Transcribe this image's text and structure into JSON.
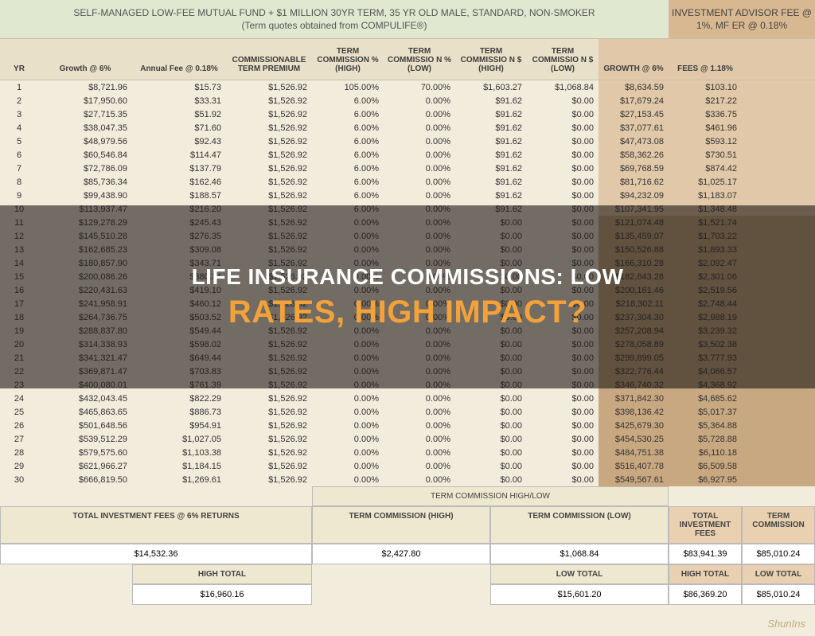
{
  "header": {
    "left_title_l1": "SELF-MANAGED LOW-FEE MUTUAL FUND + $1 MILLION 30YR TERM, 35 YR OLD MALE, STANDARD, NON-SMOKER",
    "left_title_l2": "(Term quotes obtained from COMPULIFE®)",
    "right_title_l1": "INVESTMENT ADVISOR FEE @",
    "right_title_l2": "1%, MF ER @ 0.18%"
  },
  "columns": [
    "YR",
    "Growth @ 6%",
    "Annual Fee @ 0.18%",
    "COMMISSIONABLE TERM PREMIUM",
    "TERM COMMISSION % (HIGH)",
    "TERM COMMISSIO N % (LOW)",
    "TERM COMMISSIO N $ (HIGH)",
    "TERM COMMISSIO N $ (LOW)",
    "GROWTH @ 6%",
    "FEES @ 1.18%"
  ],
  "rows": [
    [
      "1",
      "$8,721.96",
      "$15.73",
      "$1,526.92",
      "105.00%",
      "70.00%",
      "$1,603.27",
      "$1,068.84",
      "$8,634.59",
      "$103.10"
    ],
    [
      "2",
      "$17,950.60",
      "$33.31",
      "$1,526.92",
      "6.00%",
      "0.00%",
      "$91.62",
      "$0.00",
      "$17,679.24",
      "$217.22"
    ],
    [
      "3",
      "$27,715.35",
      "$51.92",
      "$1,526.92",
      "6.00%",
      "0.00%",
      "$91.62",
      "$0.00",
      "$27,153.45",
      "$336.75"
    ],
    [
      "4",
      "$38,047.35",
      "$71.60",
      "$1,526.92",
      "6.00%",
      "0.00%",
      "$91.62",
      "$0.00",
      "$37,077.61",
      "$461.96"
    ],
    [
      "5",
      "$48,979.56",
      "$92.43",
      "$1,526.92",
      "6.00%",
      "0.00%",
      "$91.62",
      "$0.00",
      "$47,473.08",
      "$593.12"
    ],
    [
      "6",
      "$60,546.84",
      "$114.47",
      "$1,526.92",
      "6.00%",
      "0.00%",
      "$91.62",
      "$0.00",
      "$58,362.26",
      "$730.51"
    ],
    [
      "7",
      "$72,786.09",
      "$137.79",
      "$1,526.92",
      "6.00%",
      "0.00%",
      "$91.62",
      "$0.00",
      "$69,768.59",
      "$874.42"
    ],
    [
      "8",
      "$85,736.34",
      "$162.46",
      "$1,526.92",
      "6.00%",
      "0.00%",
      "$91.62",
      "$0.00",
      "$81,716.62",
      "$1,025.17"
    ],
    [
      "9",
      "$99,438.90",
      "$188.57",
      "$1,526.92",
      "6.00%",
      "0.00%",
      "$91.62",
      "$0.00",
      "$94,232.09",
      "$1,183.07"
    ],
    [
      "10",
      "$113,937.47",
      "$216.20",
      "$1,526.92",
      "6.00%",
      "0.00%",
      "$91.62",
      "$0.00",
      "$107,341.95",
      "$1,348.48"
    ],
    [
      "11",
      "$129,278.29",
      "$245.43",
      "$1,526.92",
      "0.00%",
      "0.00%",
      "$0.00",
      "$0.00",
      "$121,074.48",
      "$1,521.74"
    ],
    [
      "12",
      "$145,510.28",
      "$276.35",
      "$1,526.92",
      "0.00%",
      "0.00%",
      "$0.00",
      "$0.00",
      "$135,459.07",
      "$1,703.22"
    ],
    [
      "13",
      "$162,685.23",
      "$309.08",
      "$1,526.92",
      "0.00%",
      "0.00%",
      "$0.00",
      "$0.00",
      "$150,526.88",
      "$1,893.33"
    ],
    [
      "14",
      "$180,857.90",
      "$343.71",
      "$1,526.92",
      "0.00%",
      "0.00%",
      "$0.00",
      "$0.00",
      "$166,310.28",
      "$2,092.47"
    ],
    [
      "15",
      "$200,086.26",
      "$380.34",
      "$1,526.92",
      "0.00%",
      "0.00%",
      "$0.00",
      "$0.00",
      "$182,843.28",
      "$2,301.06"
    ],
    [
      "16",
      "$220,431.63",
      "$419.10",
      "$1,526.92",
      "0.00%",
      "0.00%",
      "$0.00",
      "$0.00",
      "$200,161.46",
      "$2,519.56"
    ],
    [
      "17",
      "$241,958.91",
      "$460.12",
      "$1,526.92",
      "0.00%",
      "0.00%",
      "$0.00",
      "$0.00",
      "$218,302.11",
      "$2,748.44"
    ],
    [
      "18",
      "$264,736.75",
      "$503.52",
      "$1,526.92",
      "0.00%",
      "0.00%",
      "$0.00",
      "$0.00",
      "$237,304.30",
      "$2,988.19"
    ],
    [
      "19",
      "$288,837.80",
      "$549.44",
      "$1,526.92",
      "0.00%",
      "0.00%",
      "$0.00",
      "$0.00",
      "$257,208.94",
      "$3,239.32"
    ],
    [
      "20",
      "$314,338.93",
      "$598.02",
      "$1,526.92",
      "0.00%",
      "0.00%",
      "$0.00",
      "$0.00",
      "$278,058.89",
      "$3,502.38"
    ],
    [
      "21",
      "$341,321.47",
      "$649.44",
      "$1,526.92",
      "0.00%",
      "0.00%",
      "$0.00",
      "$0.00",
      "$299,899.05",
      "$3,777.93"
    ],
    [
      "22",
      "$369,871.47",
      "$703.83",
      "$1,526.92",
      "0.00%",
      "0.00%",
      "$0.00",
      "$0.00",
      "$322,776.44",
      "$4,066.57"
    ],
    [
      "23",
      "$400,080.01",
      "$761.39",
      "$1,526.92",
      "0.00%",
      "0.00%",
      "$0.00",
      "$0.00",
      "$346,740.32",
      "$4,368.92"
    ],
    [
      "24",
      "$432,043.45",
      "$822.29",
      "$1,526.92",
      "0.00%",
      "0.00%",
      "$0.00",
      "$0.00",
      "$371,842.30",
      "$4,685.62"
    ],
    [
      "25",
      "$465,863.65",
      "$886.73",
      "$1,526.92",
      "0.00%",
      "0.00%",
      "$0.00",
      "$0.00",
      "$398,136.42",
      "$5,017.37"
    ],
    [
      "26",
      "$501,648.56",
      "$954.91",
      "$1,526.92",
      "0.00%",
      "0.00%",
      "$0.00",
      "$0.00",
      "$425,679.30",
      "$5,364.88"
    ],
    [
      "27",
      "$539,512.29",
      "$1,027.05",
      "$1,526.92",
      "0.00%",
      "0.00%",
      "$0.00",
      "$0.00",
      "$454,530.25",
      "$5,728.88"
    ],
    [
      "28",
      "$579,575.60",
      "$1,103.38",
      "$1,526.92",
      "0.00%",
      "0.00%",
      "$0.00",
      "$0.00",
      "$484,751.38",
      "$6,110.18"
    ],
    [
      "29",
      "$621,966.27",
      "$1,184.15",
      "$1,526.92",
      "0.00%",
      "0.00%",
      "$0.00",
      "$0.00",
      "$516,407.78",
      "$6,509.58"
    ],
    [
      "30",
      "$666,819.50",
      "$1,269.61",
      "$1,526.92",
      "0.00%",
      "0.00%",
      "$0.00",
      "$0.00",
      "$549,567.61",
      "$6,927.95"
    ]
  ],
  "shade_from_row_index": 10,
  "summary": {
    "row1": {
      "term_hl_label": "TERM COMMISSION HIGH/LOW",
      "left_label": "TOTAL INVESTMENT FEES @ 6% RETURNS",
      "left_value": "$14,532.36",
      "mid_high_label": "TERM COMMISSION (HIGH)",
      "mid_high_value": "$2,427.80",
      "mid_low_label": "TERM COMMISSION (LOW)",
      "mid_low_value": "$1,068.84",
      "right_inv_label": "TOTAL INVESTMENT FEES",
      "right_inv_value": "$83,941.39",
      "right_term_label": "TERM COMMISSION",
      "right_term_value": "$85,010.24"
    },
    "row2": {
      "high_total_label": "HIGH TOTAL",
      "high_total_value": "$16,960.16",
      "low_total_label": "LOW TOTAL",
      "low_total_value": "$15,601.20",
      "r_high_label": "HIGH TOTAL",
      "r_high_value": "$86,369.20",
      "r_low_label": "LOW TOTAL",
      "r_low_value": "$85,010.24"
    }
  },
  "overlay": {
    "line1": "LIFE INSURANCE COMMISSIONS: LOW",
    "line2": "RATES, HIGH IMPACT?"
  },
  "watermark": "ShunIns",
  "style": {
    "left_header_bg": "#e0e8d0",
    "right_header_bg": "#d8b890",
    "colhead_bg_left": "#e8e0c8",
    "colhead_bg_right": "#e0c8a8",
    "row_bg_left": "#f2ecdc",
    "row_bg_right": "#e0c8a8",
    "row_bg_right_shade": "#c8a880",
    "overlay_accent": "#f3a23a"
  }
}
